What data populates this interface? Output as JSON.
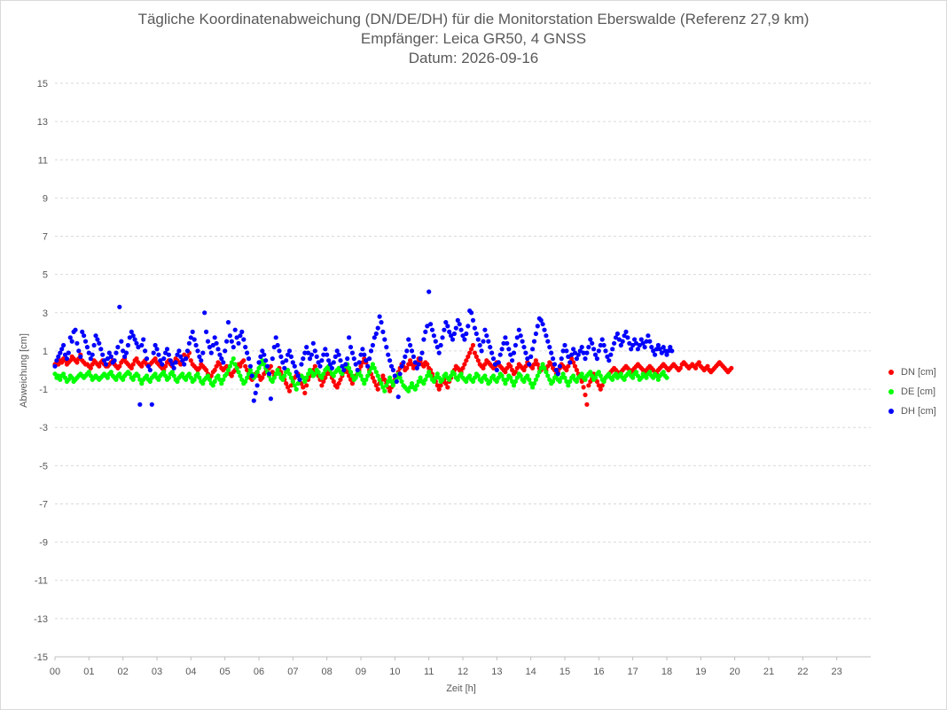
{
  "title_lines": [
    "Tägliche Koordinatenabweichung (DN/DE/DH) für die Monitorstation Eberswalde (Referenz 27,9 km)",
    "Empfänger: Leica GR50, 4 GNSS",
    "Datum: 2026-09-16"
  ],
  "chart_data": {
    "type": "scatter",
    "title": "Tägliche Koordinatenabweichung (DN/DE/DH) für die Monitorstation Eberswalde (Referenz 27,9 km)",
    "subtitle": [
      "Empfänger: Leica GR50, 4 GNSS",
      "Datum: 2026-09-16"
    ],
    "xlabel": "Zeit [h]",
    "ylabel": "Abweichung [cm]",
    "xlim": [
      0,
      24
    ],
    "ylim": [
      -15,
      15
    ],
    "x_tick_labels": [
      "00",
      "01",
      "02",
      "03",
      "04",
      "05",
      "06",
      "07",
      "08",
      "09",
      "10",
      "11",
      "12",
      "13",
      "14",
      "15",
      "16",
      "17",
      "18",
      "19",
      "20",
      "21",
      "22",
      "23"
    ],
    "y_tick_labels": [
      "15",
      "13",
      "11",
      "9",
      "7",
      "5",
      "3",
      "1",
      "-1",
      "-3",
      "-5",
      "-7",
      "-9",
      "-11",
      "-13",
      "-15"
    ],
    "y_ticks": [
      15,
      13,
      11,
      9,
      7,
      5,
      3,
      1,
      -1,
      -3,
      -5,
      -7,
      -9,
      -11,
      -13,
      -15
    ],
    "grid": "horizontal dashed",
    "legend_position": "right",
    "sample_interval_h": 0.05,
    "series": [
      {
        "name": "DN [cm]",
        "color": "#ff0000",
        "x_start": 0,
        "x_step": 0.05,
        "values": [
          0.3,
          0.4,
          0.3,
          0.5,
          0.4,
          0.6,
          0.5,
          0.3,
          0.4,
          0.5,
          0.7,
          0.6,
          0.5,
          0.4,
          0.6,
          0.8,
          0.5,
          0.4,
          0.3,
          0.3,
          0.2,
          0.1,
          0.3,
          0.5,
          0.4,
          0.3,
          0.2,
          0.4,
          0.5,
          0.3,
          0.2,
          0.2,
          0.3,
          0.4,
          0.5,
          0.3,
          0.2,
          0.1,
          0.2,
          0.4,
          0.5,
          0.6,
          0.4,
          0.3,
          0.2,
          0.1,
          0.3,
          0.5,
          0.6,
          0.4,
          0.3,
          0.2,
          0.4,
          0.5,
          0.3,
          0.2,
          0.3,
          0.4,
          0.5,
          0.6,
          0.4,
          0.3,
          0.2,
          0.1,
          0.0,
          0.2,
          0.4,
          0.5,
          0.3,
          0.2,
          0.4,
          0.6,
          0.5,
          0.4,
          0.3,
          0.5,
          0.8,
          0.6,
          0.7,
          0.9,
          0.5,
          0.3,
          0.2,
          0.1,
          0.0,
          0.1,
          0.3,
          0.2,
          0.1,
          0.0,
          -0.2,
          -0.4,
          -0.3,
          -0.1,
          0.0,
          0.2,
          0.4,
          0.3,
          0.1,
          0.0,
          0.1,
          0.2,
          0.0,
          -0.2,
          -0.3,
          -0.1,
          0.0,
          0.1,
          0.3,
          0.2,
          0.4,
          0.5,
          0.2,
          0.0,
          -0.2,
          -0.4,
          -0.5,
          -0.3,
          -0.2,
          -0.1,
          -0.3,
          -0.5,
          -0.4,
          -0.2,
          -0.1,
          0.0,
          0.1,
          0.2,
          -0.1,
          -0.3,
          -0.2,
          0.0,
          0.1,
          -0.1,
          -0.3,
          -0.5,
          -0.7,
          -0.9,
          -1.1,
          -0.8,
          -0.6,
          -0.4,
          -0.3,
          -0.2,
          -0.5,
          -0.7,
          -0.9,
          -1.2,
          -0.8,
          -0.5,
          -0.3,
          -0.1,
          0.0,
          0.2,
          0.0,
          -0.3,
          -0.5,
          -0.8,
          -0.6,
          -0.4,
          -0.2,
          0.0,
          -0.2,
          -0.4,
          -0.6,
          -0.8,
          -0.9,
          -0.7,
          -0.5,
          -0.3,
          -0.1,
          0.1,
          -0.1,
          -0.3,
          -0.5,
          -0.7,
          -0.5,
          -0.3,
          -0.2,
          0.0,
          0.2,
          0.4,
          0.6,
          0.4,
          0.2,
          0.0,
          -0.2,
          -0.4,
          -0.6,
          -0.8,
          -1.0,
          -0.7,
          -0.5,
          -0.3,
          -0.5,
          -0.7,
          -0.9,
          -1.1,
          -0.9,
          -0.7,
          -0.5,
          -0.3,
          -0.1,
          0.1,
          0.3,
          0.2,
          0.0,
          0.1,
          0.3,
          0.5,
          0.3,
          0.1,
          0.3,
          0.4,
          0.6,
          0.5,
          0.3,
          0.2,
          0.4,
          0.3,
          0.1,
          0.0,
          -0.2,
          -0.4,
          -0.6,
          -0.8,
          -1.0,
          -0.8,
          -0.6,
          -0.5,
          -0.7,
          -0.9,
          -0.6,
          -0.4,
          -0.2,
          0.0,
          0.2,
          0.1,
          0.0,
          -0.1,
          0.1,
          0.3,
          0.5,
          0.7,
          0.9,
          1.1,
          1.3,
          0.9,
          0.7,
          0.5,
          0.3,
          0.2,
          0.1,
          0.3,
          0.5,
          0.4,
          0.3,
          0.2,
          0.1,
          0.2,
          0.4,
          0.3,
          0.2,
          0.1,
          0.0,
          -0.1,
          0.1,
          0.3,
          0.2,
          0.0,
          -0.2,
          -0.1,
          0.1,
          0.3,
          0.2,
          0.1,
          0.0,
          0.2,
          0.4,
          0.3,
          0.2,
          0.1,
          0.3,
          0.5,
          0.3,
          0.1,
          0.0,
          0.2,
          0.1,
          0.0,
          0.2,
          0.4,
          0.3,
          0.1,
          0.0,
          -0.2,
          -0.1,
          0.1,
          0.3,
          0.2,
          0.1,
          0.0,
          0.2,
          0.4,
          0.6,
          0.4,
          0.2,
          0.0,
          -0.2,
          -0.4,
          -0.6,
          -0.9,
          -1.3,
          -1.8,
          -0.8,
          -0.6,
          -0.4,
          -0.2,
          -0.4,
          -0.6,
          -0.8,
          -1.0,
          -0.8,
          -0.6,
          -0.4,
          -0.3,
          -0.2,
          -0.1,
          0.0,
          0.1,
          0.0,
          -0.1,
          -0.2,
          -0.1,
          0.0,
          0.1,
          0.2,
          0.1,
          0.0,
          -0.1,
          0.0,
          0.1,
          0.2,
          0.3,
          0.2,
          0.1,
          0.0,
          -0.1,
          0.0,
          0.1,
          0.2,
          0.1,
          0.0,
          -0.1,
          -0.2,
          0.0,
          0.1,
          0.2,
          0.3,
          0.2,
          0.1,
          0.0,
          0.1,
          0.2,
          0.3,
          0.2,
          0.1,
          0.0,
          0.1,
          0.3,
          0.4,
          0.3,
          0.2,
          0.1,
          0.2,
          0.3,
          0.2,
          0.1,
          0.3,
          0.4,
          0.2,
          0.1,
          0.0,
          0.1,
          0.2,
          0.0,
          -0.1,
          0.0,
          0.1,
          0.2,
          0.3,
          0.4,
          0.3,
          0.2,
          0.1,
          0.0,
          -0.1,
          0.0,
          0.1
        ]
      },
      {
        "name": "DE [cm]",
        "color": "#00ff00",
        "x_start": 0,
        "x_step": 0.05,
        "values": [
          -0.2,
          -0.4,
          -0.3,
          -0.5,
          -0.3,
          -0.2,
          -0.4,
          -0.6,
          -0.5,
          -0.3,
          -0.4,
          -0.6,
          -0.5,
          -0.4,
          -0.3,
          -0.2,
          -0.3,
          -0.4,
          -0.3,
          -0.2,
          -0.1,
          -0.3,
          -0.5,
          -0.4,
          -0.3,
          -0.4,
          -0.5,
          -0.4,
          -0.3,
          -0.2,
          -0.3,
          -0.4,
          -0.2,
          -0.1,
          -0.3,
          -0.4,
          -0.5,
          -0.3,
          -0.2,
          -0.4,
          -0.5,
          -0.3,
          -0.2,
          -0.1,
          -0.2,
          -0.4,
          -0.5,
          -0.3,
          -0.2,
          -0.3,
          -0.5,
          -0.7,
          -0.5,
          -0.4,
          -0.3,
          -0.5,
          -0.6,
          -0.4,
          -0.3,
          -0.2,
          -0.4,
          -0.5,
          -0.3,
          -0.2,
          -0.1,
          -0.3,
          -0.5,
          -0.4,
          -0.2,
          -0.1,
          -0.3,
          -0.5,
          -0.6,
          -0.4,
          -0.3,
          -0.2,
          -0.4,
          -0.5,
          -0.3,
          -0.2,
          -0.4,
          -0.6,
          -0.5,
          -0.3,
          -0.2,
          -0.4,
          -0.6,
          -0.7,
          -0.5,
          -0.4,
          -0.3,
          -0.5,
          -0.7,
          -0.8,
          -0.6,
          -0.4,
          -0.3,
          -0.5,
          -0.7,
          -0.5,
          -0.3,
          -0.2,
          0.0,
          0.2,
          0.4,
          0.6,
          0.3,
          0.1,
          -0.1,
          -0.3,
          -0.5,
          -0.7,
          -0.6,
          -0.4,
          -0.2,
          0.0,
          -0.2,
          -0.4,
          -0.3,
          -0.1,
          0.1,
          0.3,
          0.5,
          0.3,
          0.1,
          -0.1,
          -0.3,
          -0.5,
          -0.6,
          -0.4,
          -0.2,
          0.0,
          -0.2,
          -0.4,
          -0.5,
          -0.3,
          -0.1,
          0.0,
          -0.2,
          -0.4,
          -0.6,
          -0.8,
          -1.0,
          -0.7,
          -0.5,
          -0.3,
          -0.4,
          -0.6,
          -0.4,
          -0.2,
          0.0,
          -0.1,
          -0.3,
          -0.2,
          0.0,
          -0.1,
          -0.3,
          -0.4,
          -0.2,
          0.0,
          0.1,
          0.2,
          0.0,
          -0.2,
          -0.3,
          -0.1,
          0.0,
          0.1,
          -0.1,
          -0.2,
          0.0,
          0.2,
          0.3,
          0.1,
          -0.1,
          -0.3,
          -0.5,
          -0.4,
          -0.2,
          -0.1,
          -0.3,
          -0.5,
          -0.7,
          -0.5,
          -0.3,
          -0.1,
          0.1,
          0.3,
          0.1,
          -0.1,
          -0.3,
          -0.5,
          -0.7,
          -0.9,
          -1.1,
          -0.8,
          -0.6,
          -0.4,
          -0.6,
          -0.8,
          -0.6,
          -0.4,
          -0.2,
          -0.4,
          -0.6,
          -0.8,
          -0.9,
          -1.0,
          -1.1,
          -0.9,
          -0.7,
          -0.9,
          -1.0,
          -0.8,
          -0.6,
          -0.4,
          -0.6,
          -0.7,
          -0.5,
          -0.3,
          -0.1,
          -0.3,
          -0.5,
          -0.6,
          -0.4,
          -0.2,
          -0.4,
          -0.6,
          -0.5,
          -0.3,
          -0.2,
          -0.4,
          -0.5,
          -0.3,
          -0.1,
          -0.2,
          -0.4,
          -0.5,
          -0.3,
          -0.2,
          -0.4,
          -0.5,
          -0.6,
          -0.4,
          -0.3,
          -0.5,
          -0.6,
          -0.4,
          -0.2,
          -0.3,
          -0.5,
          -0.6,
          -0.4,
          -0.3,
          -0.5,
          -0.7,
          -0.6,
          -0.4,
          -0.3,
          -0.5,
          -0.6,
          -0.4,
          -0.2,
          -0.3,
          -0.5,
          -0.7,
          -0.5,
          -0.3,
          -0.4,
          -0.6,
          -0.8,
          -0.6,
          -0.4,
          -0.2,
          -0.3,
          -0.5,
          -0.6,
          -0.4,
          -0.3,
          -0.5,
          -0.7,
          -0.9,
          -0.7,
          -0.5,
          -0.3,
          -0.1,
          0.1,
          0.3,
          0.1,
          -0.1,
          -0.3,
          -0.5,
          -0.7,
          -0.6,
          -0.4,
          -0.3,
          -0.5,
          -0.6,
          -0.4,
          -0.2,
          -0.4,
          -0.6,
          -0.8,
          -0.6,
          -0.4,
          -0.3,
          -0.5,
          -0.6,
          -0.4,
          -0.3,
          -0.2,
          -0.4,
          -0.5,
          -0.3,
          -0.2,
          -0.1,
          -0.3,
          -0.5,
          -0.4,
          -0.2,
          -0.1,
          -0.3,
          -0.5,
          -0.6,
          -0.4,
          -0.3,
          -0.2,
          -0.4,
          -0.5,
          -0.3,
          -0.2,
          -0.4,
          -0.3,
          -0.2,
          -0.4,
          -0.5,
          -0.3,
          -0.2,
          -0.1,
          -0.3,
          -0.4,
          -0.2,
          -0.1,
          -0.3,
          -0.5,
          -0.4,
          -0.2,
          -0.3,
          -0.4,
          -0.2,
          -0.1,
          -0.3,
          -0.4,
          -0.2,
          -0.3,
          -0.5,
          -0.3,
          -0.2,
          -0.1,
          -0.3,
          -0.4
        ]
      },
      {
        "name": "DH [cm]",
        "color": "#0000ff",
        "x_start": 0,
        "x_step": 0.05,
        "values": [
          0.2,
          0.5,
          0.7,
          0.9,
          1.1,
          1.3,
          0.8,
          0.6,
          0.9,
          1.7,
          1.5,
          2.0,
          2.1,
          1.4,
          1.0,
          0.7,
          2.0,
          1.8,
          1.5,
          1.2,
          0.9,
          0.6,
          0.8,
          1.3,
          1.8,
          1.6,
          1.4,
          1.1,
          0.8,
          0.5,
          0.3,
          0.6,
          0.9,
          0.7,
          0.4,
          0.5,
          0.9,
          1.2,
          3.3,
          1.5,
          1.0,
          0.7,
          0.9,
          1.3,
          1.7,
          2.0,
          1.8,
          1.6,
          1.4,
          1.2,
          -1.8,
          1.3,
          1.6,
          1.0,
          0.6,
          0.2,
          0.0,
          -1.8,
          0.9,
          1.3,
          1.1,
          0.8,
          0.5,
          0.3,
          0.6,
          0.9,
          1.1,
          0.8,
          0.5,
          0.3,
          0.1,
          0.4,
          0.8,
          1.0,
          0.7,
          0.5,
          0.3,
          0.6,
          1.0,
          1.4,
          1.7,
          2.0,
          1.6,
          1.3,
          1.0,
          0.7,
          0.5,
          0.9,
          3.0,
          2.0,
          1.5,
          1.2,
          0.9,
          1.3,
          1.7,
          1.4,
          1.1,
          0.8,
          0.6,
          0.4,
          1.0,
          1.5,
          2.5,
          1.8,
          1.5,
          1.2,
          2.1,
          1.7,
          1.4,
          1.8,
          2.0,
          1.6,
          1.2,
          0.9,
          0.6,
          0.2,
          -0.3,
          -1.6,
          -1.2,
          -0.8,
          0.4,
          0.7,
          1.0,
          0.8,
          0.5,
          0.2,
          -0.2,
          -1.5,
          0.6,
          1.2,
          1.7,
          1.3,
          1.0,
          0.7,
          0.4,
          0.1,
          0.5,
          0.8,
          1.0,
          0.7,
          0.4,
          0.2,
          -0.1,
          -0.3,
          -0.5,
          0.3,
          0.6,
          0.9,
          1.2,
          0.9,
          0.6,
          0.8,
          1.4,
          1.0,
          0.7,
          0.4,
          0.2,
          0.5,
          0.8,
          1.1,
          0.8,
          0.5,
          0.3,
          0.1,
          0.4,
          0.7,
          1.0,
          0.8,
          0.5,
          0.2,
          0.0,
          0.3,
          0.6,
          1.7,
          1.2,
          0.9,
          0.6,
          0.3,
          0.0,
          0.4,
          0.8,
          1.1,
          0.8,
          0.5,
          0.2,
          0.6,
          1.0,
          1.3,
          1.7,
          1.9,
          2.2,
          2.8,
          2.5,
          2.0,
          1.6,
          1.2,
          0.8,
          0.5,
          0.2,
          0.0,
          -0.3,
          -0.6,
          -1.4,
          -0.2,
          0.2,
          0.4,
          0.7,
          1.0,
          1.6,
          1.3,
          1.0,
          0.7,
          0.4,
          0.1,
          0.3,
          0.6,
          0.9,
          1.6,
          2.0,
          2.3,
          4.1,
          2.4,
          2.1,
          1.8,
          1.5,
          1.2,
          0.9,
          1.3,
          1.7,
          2.1,
          2.5,
          2.3,
          2.0,
          1.8,
          1.6,
          1.9,
          2.2,
          2.6,
          2.4,
          2.1,
          1.8,
          1.6,
          1.9,
          2.3,
          3.1,
          3.0,
          2.6,
          2.2,
          1.9,
          1.6,
          1.3,
          1.0,
          1.5,
          2.1,
          1.8,
          1.5,
          1.2,
          0.9,
          0.6,
          0.3,
          0.0,
          0.4,
          0.8,
          1.1,
          1.4,
          1.7,
          1.4,
          1.1,
          0.8,
          0.5,
          0.9,
          1.3,
          1.7,
          2.1,
          1.8,
          1.5,
          1.2,
          0.9,
          0.6,
          0.3,
          0.7,
          1.1,
          1.5,
          1.9,
          2.3,
          2.7,
          2.6,
          2.4,
          2.1,
          1.8,
          1.5,
          1.2,
          0.9,
          0.6,
          0.3,
          0.0,
          -0.2,
          0.2,
          0.6,
          1.0,
          1.3,
          1.0,
          0.7,
          0.4,
          0.8,
          1.1,
          0.9,
          0.6,
          0.8,
          1.0,
          1.2,
          0.9,
          0.6,
          0.9,
          1.2,
          1.6,
          1.4,
          1.1,
          0.8,
          0.6,
          1.0,
          1.3,
          1.6,
          1.3,
          1.0,
          0.7,
          0.5,
          0.8,
          1.1,
          1.4,
          1.7,
          1.9,
          1.6,
          1.3,
          1.5,
          1.8,
          2.0,
          1.7,
          1.4,
          1.1,
          1.3,
          1.6,
          1.4,
          1.1,
          1.3,
          1.6,
          1.4,
          1.2,
          1.5,
          1.8,
          1.5,
          1.2,
          1.0,
          0.8,
          1.1,
          1.3,
          1.1,
          0.9,
          1.2,
          1.0,
          0.8,
          1.0,
          1.2,
          1.0
        ]
      }
    ]
  }
}
